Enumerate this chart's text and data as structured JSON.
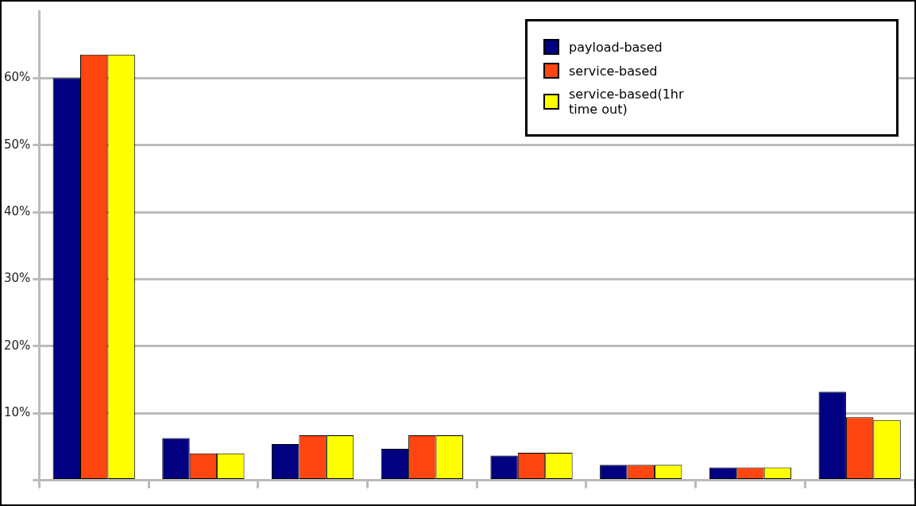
{
  "chart_data": {
    "type": "bar",
    "categories": [
      null,
      null,
      null,
      null,
      null,
      null,
      null,
      null
    ],
    "series": [
      {
        "name": "payload-based",
        "color": "#000080",
        "values": [
          60,
          6.3,
          5.4,
          4.7,
          3.7,
          2.3,
          1.9,
          13.2
        ]
      },
      {
        "name": "service-based",
        "color": "#ff4510",
        "values": [
          63.5,
          4.0,
          6.7,
          6.7,
          4.1,
          2.3,
          1.9,
          9.4
        ]
      },
      {
        "name": "service-based(1hr time out)",
        "color": "#ffff00",
        "values": [
          63.5,
          4.0,
          6.7,
          6.7,
          4.1,
          2.3,
          1.9,
          9.0
        ]
      }
    ],
    "ylim": [
      0,
      70
    ],
    "yticks": [
      {
        "value": 0,
        "label": null
      },
      {
        "value": 10,
        "label": "10%"
      },
      {
        "value": 20,
        "label": "20%"
      },
      {
        "value": 30,
        "label": "30%"
      },
      {
        "value": 40,
        "label": "40%"
      },
      {
        "value": 50,
        "label": "50%"
      },
      {
        "value": 60,
        "label": "60%"
      }
    ],
    "grid": "y",
    "legend": "top right"
  }
}
